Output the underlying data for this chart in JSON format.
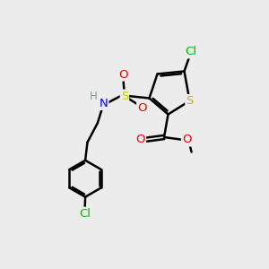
{
  "bg_color": "#ececec",
  "atom_colors": {
    "C": "#000000",
    "H": "#7a9a9a",
    "N": "#0000ee",
    "O": "#ee0000",
    "S_ring": "#b8b800",
    "S_sulfonyl": "#cccc00",
    "Cl": "#00bb00"
  },
  "bond_color": "#000000",
  "bond_lw": 1.8,
  "font_size": 9.5
}
